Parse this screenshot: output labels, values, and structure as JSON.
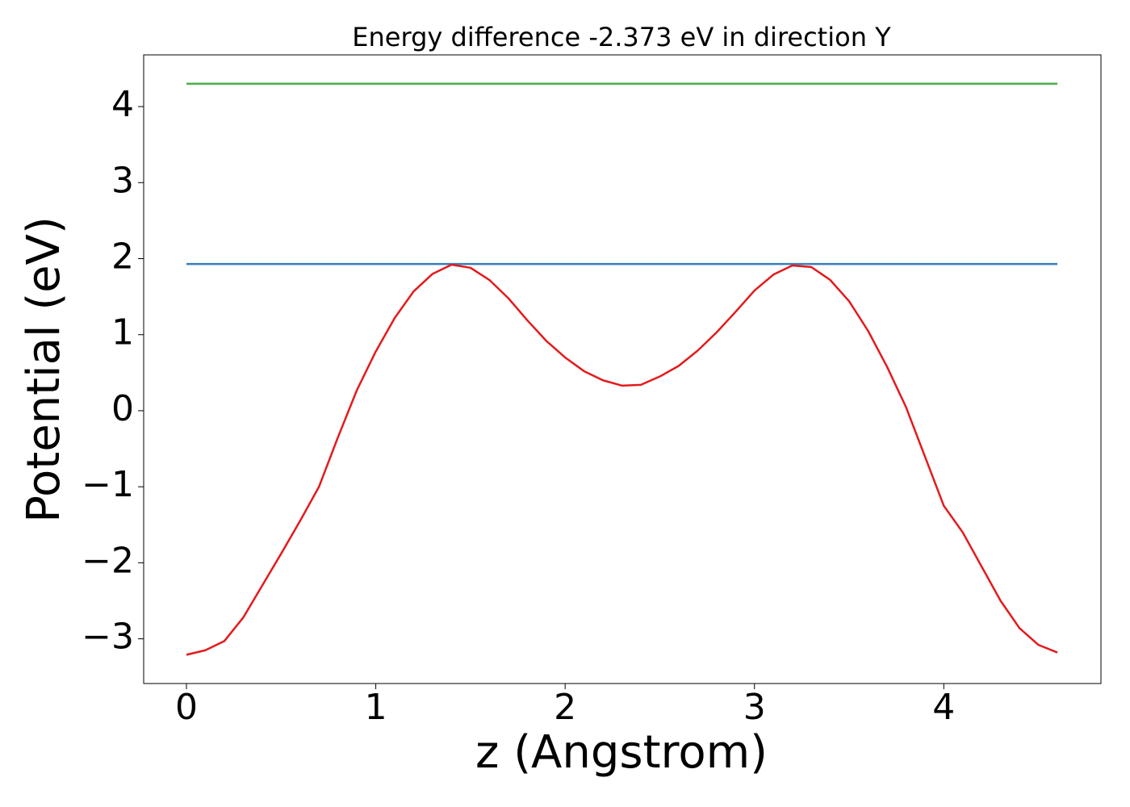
{
  "chart_data": {
    "type": "line",
    "title": "Energy difference -2.373 eV in direction Y",
    "xlabel": "z (Angstrom)",
    "ylabel": "Potential (eV)",
    "xlim": [
      -0.226,
      4.83
    ],
    "ylim": [
      -3.588,
      4.68
    ],
    "xticks": [
      0,
      1,
      2,
      3,
      4
    ],
    "yticks": [
      {
        "value": -3,
        "label": "−3"
      },
      {
        "value": -2,
        "label": "−2"
      },
      {
        "value": -1,
        "label": "−1"
      },
      0,
      1,
      2,
      3,
      4
    ],
    "grid": false,
    "series": [
      {
        "color": "#4daf4a",
        "x": [
          0,
          4.6
        ],
        "values": [
          4.3,
          4.3
        ]
      },
      {
        "color": "#377eb8",
        "x": [
          0,
          4.6
        ],
        "values": [
          1.93,
          1.93
        ]
      },
      {
        "color": "#e41a1c",
        "x": [
          0,
          0.1,
          0.2,
          0.3,
          0.4,
          0.5,
          0.6,
          0.7,
          0.8,
          0.9,
          1.0,
          1.1,
          1.2,
          1.3,
          1.4,
          1.5,
          1.6,
          1.7,
          1.8,
          1.9,
          2.0,
          2.1,
          2.2,
          2.3,
          2.4,
          2.5,
          2.6,
          2.7,
          2.8,
          2.9,
          3.0,
          3.1,
          3.2,
          3.3,
          3.4,
          3.5,
          3.6,
          3.7,
          3.8,
          3.9,
          4.0,
          4.1,
          4.2,
          4.3,
          4.4,
          4.5,
          4.6
        ],
        "values": [
          -3.21,
          -3.15,
          -3.03,
          -2.72,
          -2.3,
          -1.88,
          -1.45,
          -1.0,
          -0.35,
          0.27,
          0.78,
          1.22,
          1.57,
          1.8,
          1.92,
          1.88,
          1.72,
          1.48,
          1.19,
          0.92,
          0.7,
          0.52,
          0.4,
          0.33,
          0.34,
          0.45,
          0.59,
          0.79,
          1.03,
          1.3,
          1.58,
          1.79,
          1.91,
          1.89,
          1.72,
          1.44,
          1.05,
          0.58,
          0.05,
          -0.6,
          -1.25,
          -1.6,
          -2.05,
          -2.5,
          -2.86,
          -3.08,
          -3.18
        ]
      }
    ]
  }
}
